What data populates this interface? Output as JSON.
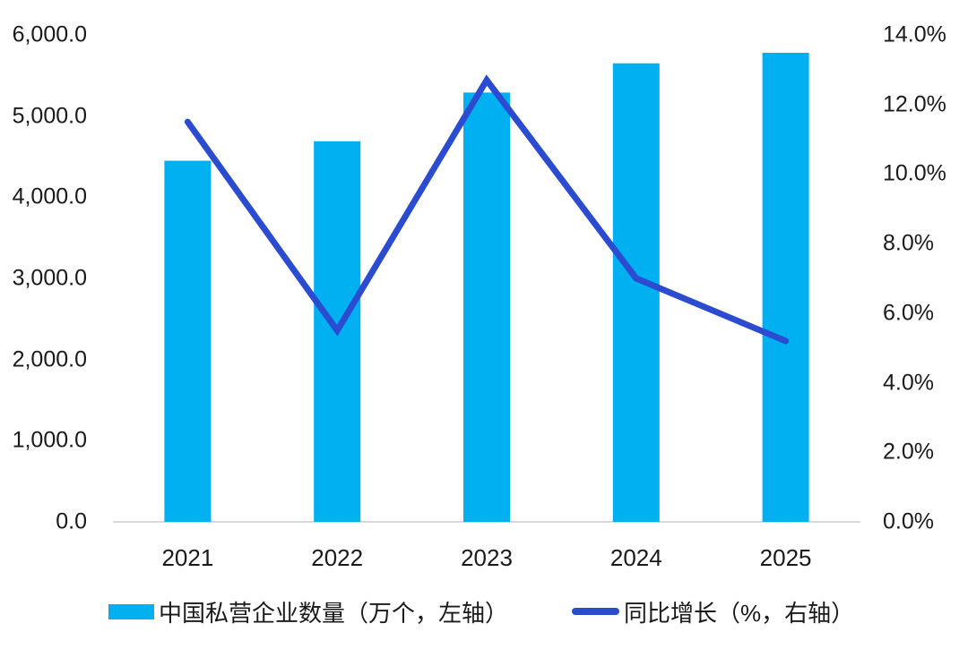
{
  "chart_data": {
    "type": "combo-bar-line",
    "categories": [
      "2021",
      "2022",
      "2023",
      "2024",
      "2025"
    ],
    "series": [
      {
        "name": "中国私营企业数量（万个，左轴）",
        "type": "bar",
        "axis": "left",
        "values": [
          4450,
          4690,
          5290,
          5650,
          5780
        ]
      },
      {
        "name": "同比增长（%，右轴）",
        "type": "line",
        "axis": "right",
        "values": [
          11.5,
          5.5,
          12.7,
          7.0,
          5.2
        ]
      }
    ],
    "left_axis": {
      "min": 0,
      "max": 6000,
      "tick_labels": [
        "6,000.0",
        "5,000.0",
        "4,000.0",
        "3,000.0",
        "2,000.0",
        "1,000.0",
        "0.0"
      ]
    },
    "right_axis": {
      "min": 0,
      "max": 14,
      "tick_labels": [
        "14.0%",
        "12.0%",
        "10.0%",
        "8.0%",
        "6.0%",
        "4.0%",
        "2.0%",
        "0.0%"
      ]
    },
    "title": "",
    "grid": false,
    "legend_position": "bottom"
  },
  "legend": {
    "bar_label": "中国私营企业数量（万个，左轴）",
    "line_label": "同比增长（%，右轴）"
  },
  "colors": {
    "bar": "#00B0F0",
    "line": "#2B4BD1",
    "axis_line": "#D9D9D9",
    "text": "#1A1A1A"
  }
}
